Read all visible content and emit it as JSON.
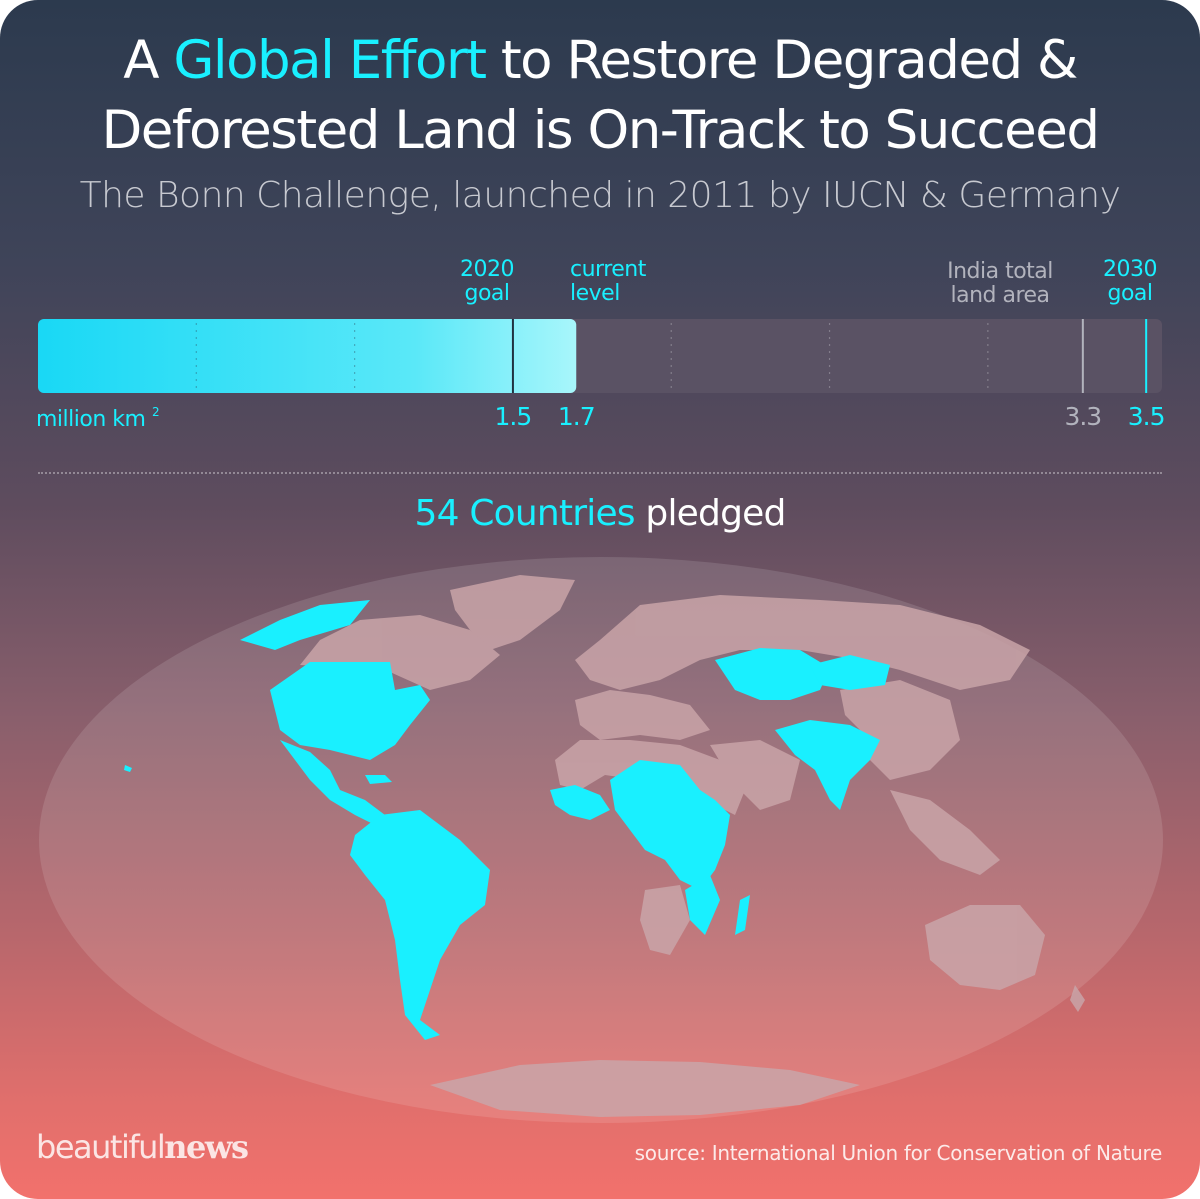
{
  "title": {
    "line1_pre": "A ",
    "line1_highlight": "Global Effort",
    "line1_post": " to Restore Degraded &",
    "line2": "Deforested Land is On-Track to Succeed"
  },
  "subtitle": "The Bonn Challenge, launched in 2011 by IUCN & Germany",
  "colors": {
    "accent": "#19f0ff",
    "bar_track": "#5a5264",
    "pledged_land": "#19f0ff",
    "other_land": "#c9a4a8"
  },
  "chart_data": [
    {
      "type": "bar",
      "orientation": "horizontal",
      "unit_label": "million km",
      "unit_superscript": "2",
      "xlim": [
        0,
        3.55
      ],
      "current_level": 1.7,
      "markers": [
        {
          "line1": "2020",
          "line2": "goal",
          "value": 1.5,
          "tick_label": "1.5",
          "color": "#19f0ff"
        },
        {
          "line1": "current",
          "line2": "level",
          "value": 1.7,
          "tick_label": "1.7",
          "color": "#19f0ff"
        },
        {
          "line1": "India total",
          "line2": "land area",
          "value": 3.3,
          "tick_label": "3.3",
          "color": "#b2b3bd"
        },
        {
          "line1": "2030",
          "line2": "goal",
          "value": 3.5,
          "tick_label": "3.5",
          "color": "#19f0ff"
        }
      ],
      "minor_gridlines": [
        0.5,
        1.0,
        1.5,
        2.0,
        2.5,
        3.0,
        3.5
      ]
    },
    {
      "type": "map",
      "projection": "mollweide",
      "headline_highlight": "54 Countries",
      "headline_rest": " pledged",
      "pledged_count": 54
    }
  ],
  "footer": {
    "brand_part1": "beautiful",
    "brand_part2": "news",
    "source": "source: International Union for Conservation of Nature"
  }
}
